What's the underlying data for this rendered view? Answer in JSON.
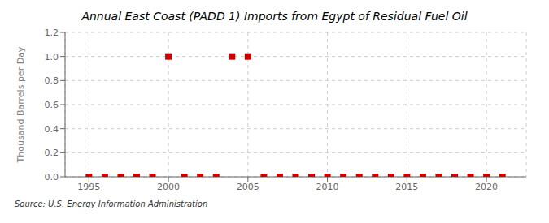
{
  "chart_data": {
    "type": "scatter",
    "title": "Annual East Coast (PADD 1) Imports from Egypt of Residual Fuel Oil",
    "ylabel": "Thousand Barrels per Day",
    "annotation": "Source: U.S. Energy Information Administration",
    "x": [
      1995,
      1996,
      1997,
      1998,
      1999,
      2000,
      2001,
      2002,
      2003,
      2004,
      2005,
      2006,
      2007,
      2008,
      2009,
      2010,
      2011,
      2012,
      2013,
      2014,
      2015,
      2016,
      2017,
      2018,
      2019,
      2020,
      2021
    ],
    "values": [
      0,
      0,
      0,
      0,
      0,
      1,
      0,
      0,
      0,
      1,
      1,
      0,
      0,
      0,
      0,
      0,
      0,
      0,
      0,
      0,
      0,
      0,
      0,
      0,
      0,
      0,
      0
    ],
    "color": "#cc0000",
    "marker": "square",
    "grid": true,
    "xlim": [
      1993.5,
      2022.5
    ],
    "ylim": [
      0,
      1.2
    ],
    "xticks": [
      1995,
      2000,
      2005,
      2010,
      2015,
      2020
    ],
    "yticks": [
      {
        "value": 0,
        "label": "0.0"
      },
      0.2,
      0.4,
      0.6,
      0.8,
      {
        "value": 1,
        "label": "1.0"
      },
      1.2
    ]
  }
}
